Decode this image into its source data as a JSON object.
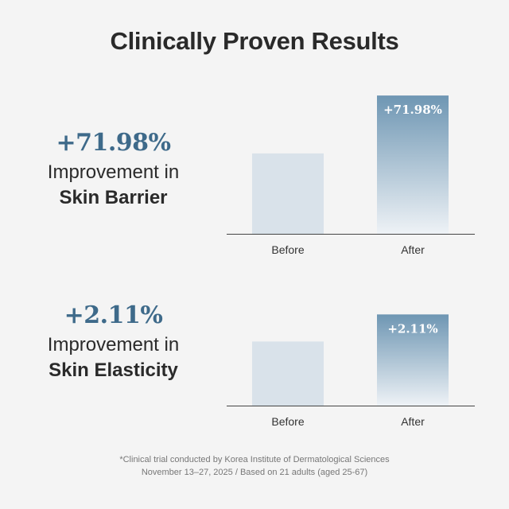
{
  "title": "Clinically Proven Results",
  "panels": [
    {
      "stat_value": "+71.98%",
      "line1": "Improvement in",
      "line2": "Skin Barrier"
    },
    {
      "stat_value": "+2.11%",
      "line1": "Improvement in",
      "line2": "Skin Elasticity"
    }
  ],
  "footnote": {
    "line1": "*Clinical trial conducted by Korea Institute of Dermatological Sciences",
    "line2": "November 13–27, 2025 / Based on 21 adults (aged 25-67)"
  },
  "colors": {
    "accent": "#3e6a8a",
    "bar_before": "#d9e2ea",
    "bar_after_top": "#6e96b3",
    "bar_after_bottom": "#eef2f6"
  },
  "chart_data": [
    {
      "type": "bar",
      "categories": [
        "Before",
        "After"
      ],
      "values": [
        100,
        171.98
      ],
      "data_labels": [
        "",
        "+71.98%"
      ],
      "ylim": [
        0,
        180
      ]
    },
    {
      "type": "bar",
      "categories": [
        "Before",
        "After"
      ],
      "values": [
        100,
        102.11
      ],
      "data_labels": [
        "",
        "+2.11%"
      ],
      "ylim": [
        95,
        103
      ]
    }
  ]
}
